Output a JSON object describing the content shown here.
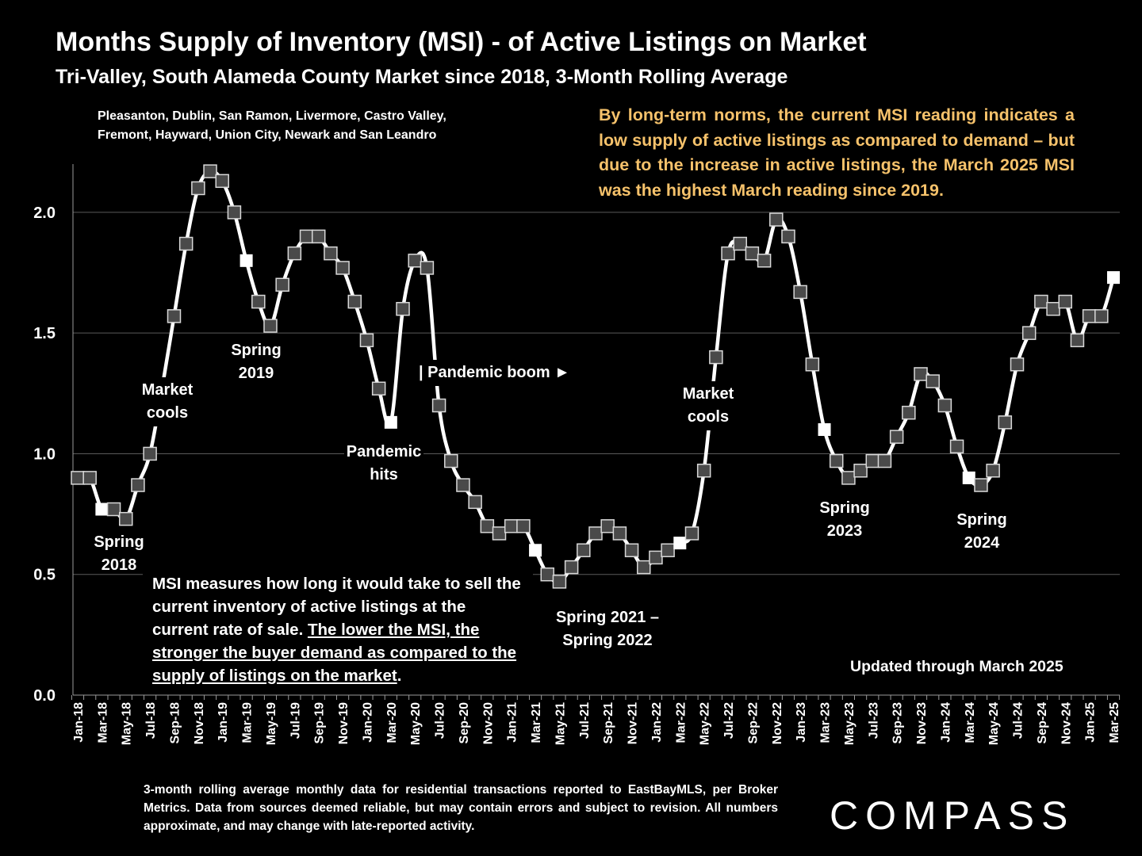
{
  "header": {
    "title": "Months Supply of Inventory (MSI) - of Active Listings on Market",
    "subtitle": "Tri-Valley, South Alameda County Market since 2018, 3-Month Rolling Average"
  },
  "cities": {
    "line1": "Pleasanton, Dublin, San Ramon, Livermore, Castro Valley,",
    "line2": "Fremont, Hayward, Union City, Newark and San Leandro"
  },
  "note": "By long-term norms, the current MSI reading indicates a low supply of active listings as compared to demand – but due to the increase in active listings, the March 2025 MSI was the highest March reading since 2019.",
  "msi_box": {
    "plain": "MSI measures how long it would take to sell the current inventory of active listings at the current rate of sale. ",
    "underlined": "The lower the MSI, the stronger the buyer demand as compared to the supply of listings on the market",
    "end": "."
  },
  "updated": "Updated through March 2025",
  "footer": "3-month rolling average monthly data for residential transactions reported to EastBayMLS, per Broker Metrics. Data from sources deemed reliable, but may contain errors and subject to revision. All numbers approximate, and may change with late-reported activity.",
  "logo": "COMPASS",
  "colors": {
    "background": "#000000",
    "line": "#ffffff",
    "marker": "#4a4a4a",
    "highlight_marker": "#ffffff",
    "note_text": "#f6c26b"
  },
  "chart_data": {
    "type": "line",
    "ylim": [
      0,
      2.2
    ],
    "yticks": [
      0.0,
      0.5,
      1.0,
      1.5,
      2.0
    ],
    "ytick_labels": [
      "0.0",
      "0.5",
      "1.0",
      "1.5",
      "2.0"
    ],
    "grid": true,
    "x": [
      "Jan-18",
      "Feb-18",
      "Mar-18",
      "Apr-18",
      "May-18",
      "Jun-18",
      "Jul-18",
      "Aug-18",
      "Sep-18",
      "Oct-18",
      "Nov-18",
      "Dec-18",
      "Jan-19",
      "Feb-19",
      "Mar-19",
      "Apr-19",
      "May-19",
      "Jun-19",
      "Jul-19",
      "Aug-19",
      "Sep-19",
      "Oct-19",
      "Nov-19",
      "Dec-19",
      "Jan-20",
      "Feb-20",
      "Mar-20",
      "Apr-20",
      "May-20",
      "Jun-20",
      "Jul-20",
      "Aug-20",
      "Sep-20",
      "Oct-20",
      "Nov-20",
      "Dec-20",
      "Jan-21",
      "Feb-21",
      "Mar-21",
      "Apr-21",
      "May-21",
      "Jun-21",
      "Jul-21",
      "Aug-21",
      "Sep-21",
      "Oct-21",
      "Nov-21",
      "Dec-21",
      "Jan-22",
      "Feb-22",
      "Mar-22",
      "Apr-22",
      "May-22",
      "Jun-22",
      "Jul-22",
      "Aug-22",
      "Sep-22",
      "Oct-22",
      "Nov-22",
      "Dec-22",
      "Jan-23",
      "Feb-23",
      "Mar-23",
      "Apr-23",
      "May-23",
      "Jun-23",
      "Jul-23",
      "Aug-23",
      "Sep-23",
      "Oct-23",
      "Nov-23",
      "Dec-23",
      "Jan-24",
      "Feb-24",
      "Mar-24",
      "Apr-24",
      "May-24",
      "Jun-24",
      "Jul-24",
      "Aug-24",
      "Sep-24",
      "Oct-24",
      "Nov-24",
      "Dec-24",
      "Jan-25",
      "Feb-25",
      "Mar-25"
    ],
    "x_tick_labels": [
      "Jan-18",
      "Mar-18",
      "May-18",
      "Jul-18",
      "Sep-18",
      "Nov-18",
      "Jan-19",
      "Mar-19",
      "May-19",
      "Jul-19",
      "Sep-19",
      "Nov-19",
      "Jan-20",
      "Mar-20",
      "May-20",
      "Jul-20",
      "Sep-20",
      "Nov-20",
      "Jan-21",
      "Mar-21",
      "May-21",
      "Jul-21",
      "Sep-21",
      "Nov-21",
      "Jan-22",
      "Mar-22",
      "May-22",
      "Jul-22",
      "Sep-22",
      "Nov-22",
      "Jan-23",
      "Mar-23",
      "May-23",
      "Jul-23",
      "Sep-23",
      "Nov-23",
      "Jan-24",
      "Mar-24",
      "May-24",
      "Jul-24",
      "Sep-24",
      "Nov-24",
      "Jan-25",
      "Mar-25"
    ],
    "values": [
      0.9,
      0.9,
      0.77,
      0.77,
      0.73,
      0.87,
      1.0,
      1.27,
      1.57,
      1.87,
      2.1,
      2.17,
      2.13,
      2.0,
      1.8,
      1.63,
      1.53,
      1.7,
      1.83,
      1.9,
      1.9,
      1.83,
      1.77,
      1.63,
      1.47,
      1.27,
      1.13,
      1.6,
      1.8,
      1.77,
      1.2,
      0.97,
      0.87,
      0.8,
      0.7,
      0.67,
      0.7,
      0.7,
      0.6,
      0.5,
      0.47,
      0.53,
      0.6,
      0.67,
      0.7,
      0.67,
      0.6,
      0.53,
      0.57,
      0.6,
      0.63,
      0.67,
      0.93,
      1.4,
      1.83,
      1.87,
      1.83,
      1.8,
      1.97,
      1.9,
      1.67,
      1.37,
      1.1,
      0.97,
      0.9,
      0.93,
      0.97,
      0.97,
      1.07,
      1.17,
      1.33,
      1.3,
      1.2,
      1.03,
      0.9,
      0.87,
      0.93,
      1.13,
      1.37,
      1.5,
      1.63,
      1.6,
      1.63,
      1.47,
      1.57,
      1.57,
      1.73
    ],
    "highlighted": [
      "Mar-18",
      "Mar-19",
      "Mar-20",
      "Mar-21",
      "Mar-22",
      "Mar-23",
      "Mar-24",
      "Mar-25"
    ],
    "hidden_markers": [
      "Aug-18"
    ],
    "annotations": [
      {
        "id": "spring-2018",
        "lines": [
          "Spring",
          "2018"
        ]
      },
      {
        "id": "market-cools-2018",
        "lines": [
          "Market",
          "cools"
        ]
      },
      {
        "id": "spring-2019",
        "lines": [
          "Spring",
          "2019"
        ]
      },
      {
        "id": "pandemic-hits",
        "lines": [
          "Pandemic",
          "hits"
        ]
      },
      {
        "id": "pandemic-boom",
        "lines": [
          "| Pandemic boom ►"
        ]
      },
      {
        "id": "spring-2021-2022",
        "lines": [
          "Spring 2021 –",
          "Spring 2022"
        ]
      },
      {
        "id": "market-cools-2022",
        "lines": [
          "Market",
          "cools"
        ]
      },
      {
        "id": "spring-2023",
        "lines": [
          "Spring",
          "2023"
        ]
      },
      {
        "id": "spring-2024",
        "lines": [
          "Spring",
          "2024"
        ]
      }
    ]
  }
}
